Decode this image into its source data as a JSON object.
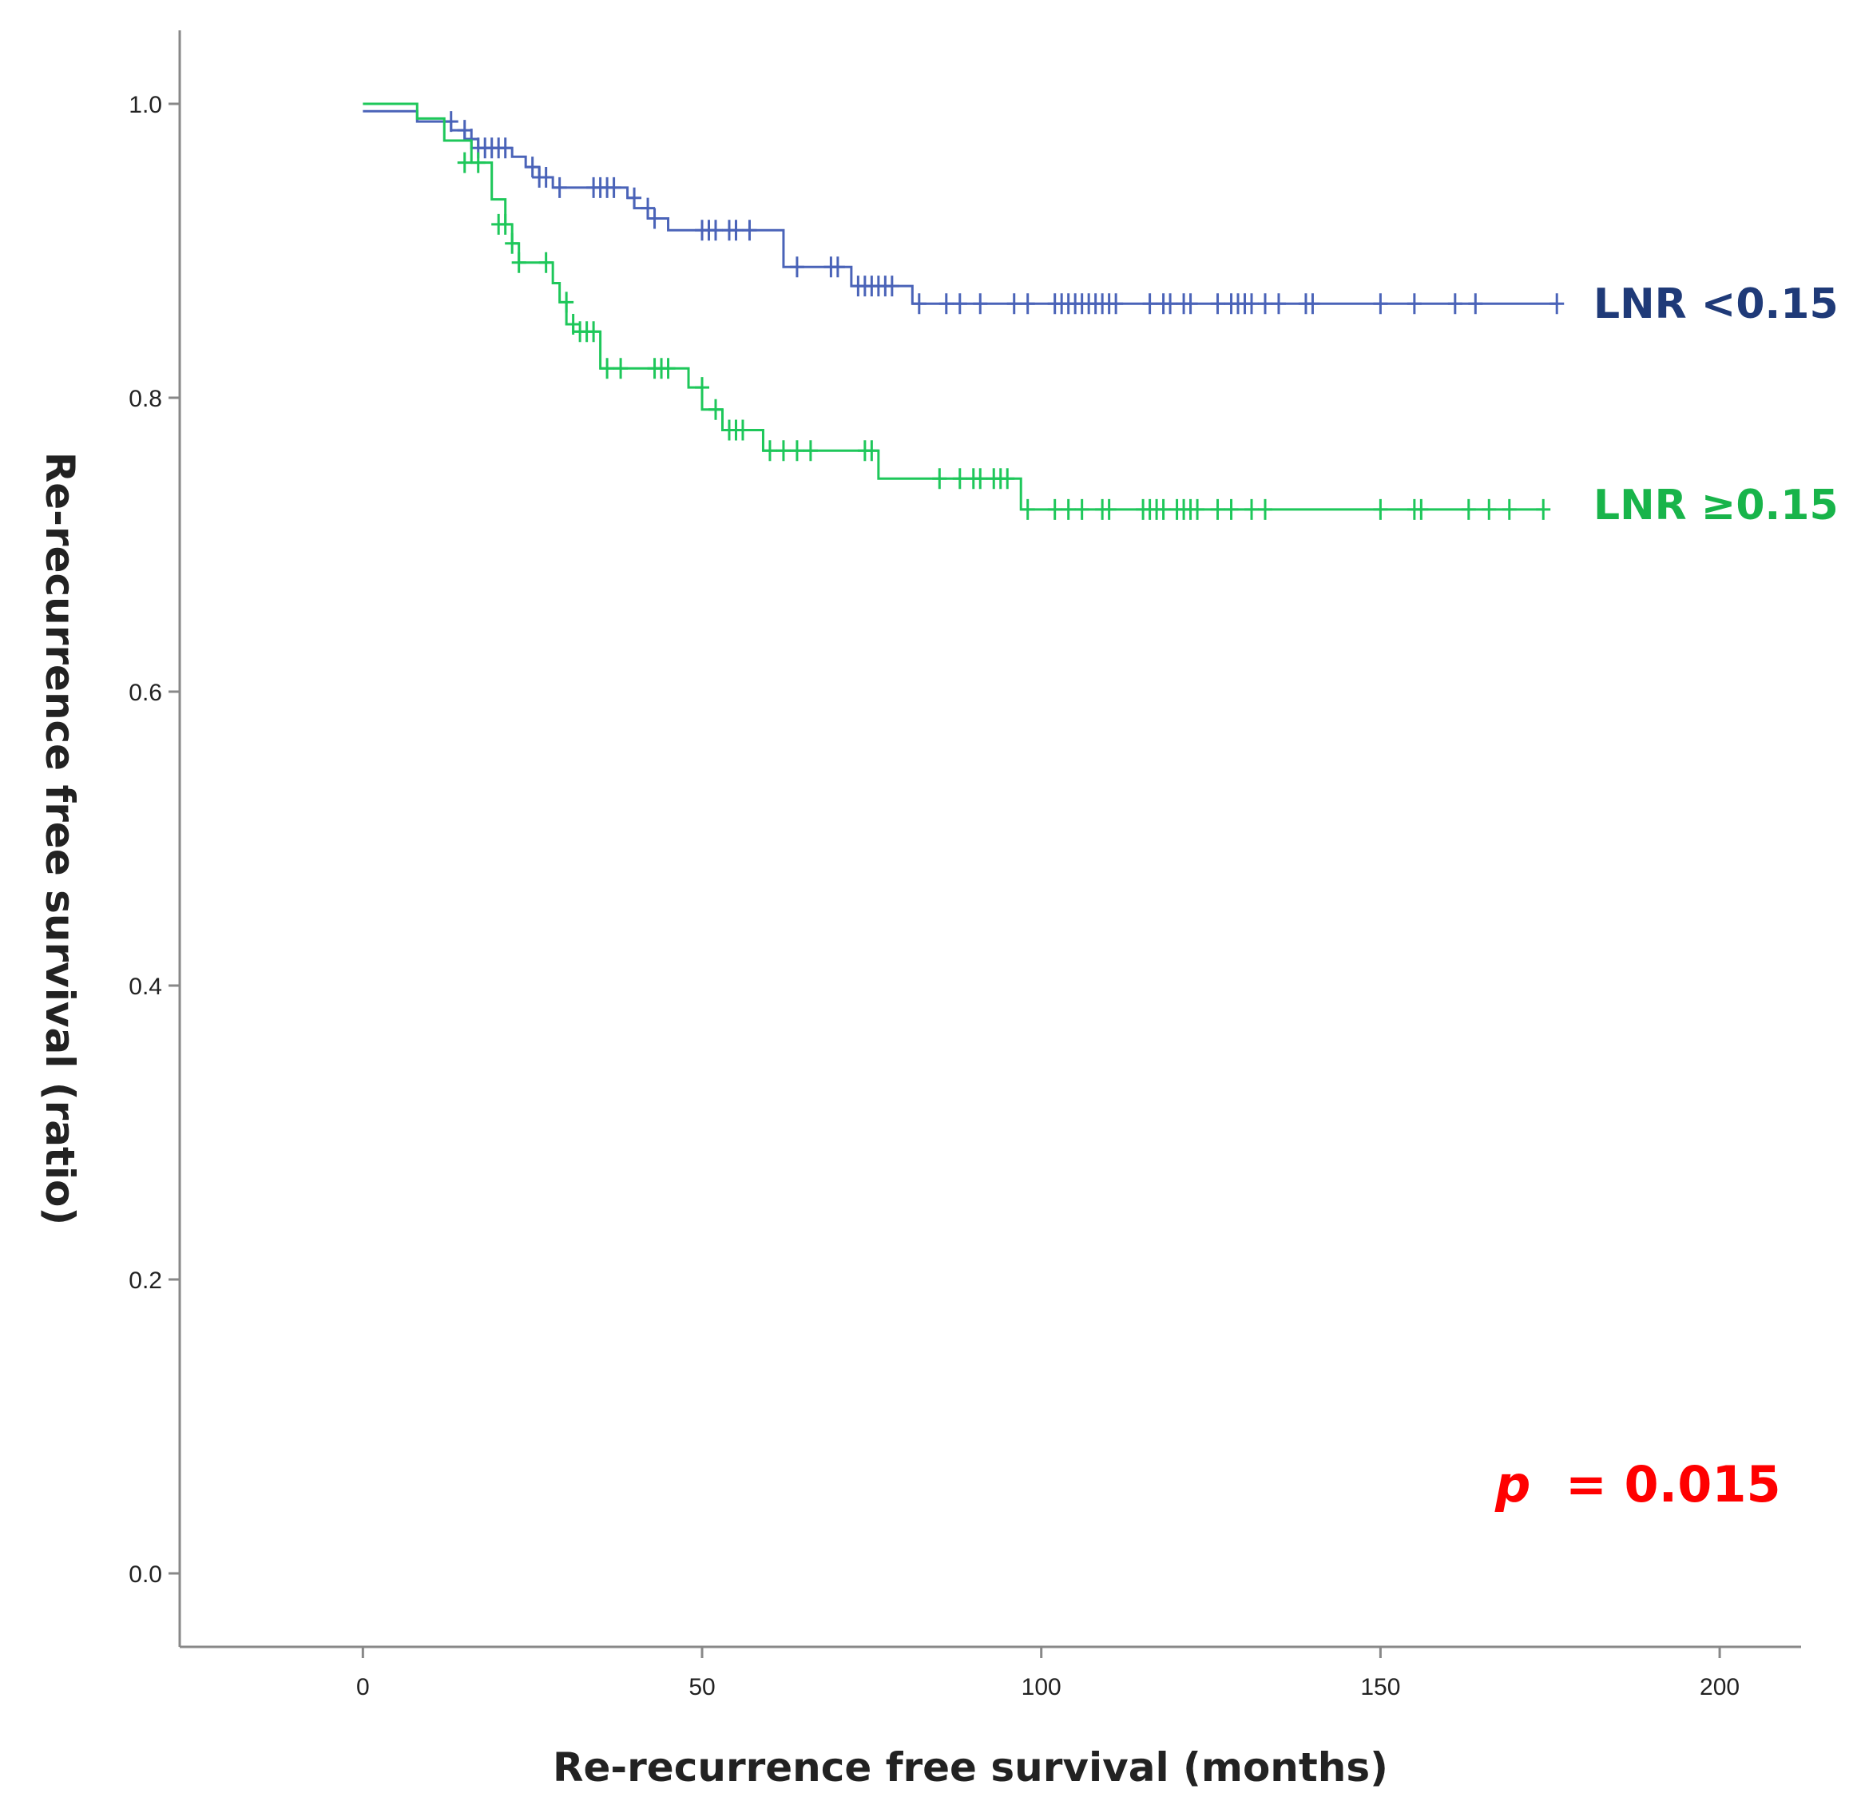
{
  "chart_data": {
    "type": "line",
    "subtype": "kaplan-meier",
    "xlabel": "Re-recurrence free survival (months)",
    "ylabel": "Re-recurrence free survival (ratio)",
    "xlim": [
      -27,
      212
    ],
    "ylim": [
      -0.05,
      1.05
    ],
    "xticks": [
      0,
      50,
      100,
      150,
      200
    ],
    "yticks": [
      "0.0",
      "0.2",
      "0.4",
      "0.6",
      "0.8",
      "1.0"
    ],
    "p_value": {
      "prefix": "p",
      "text": "= 0.015",
      "color": "#ff0000"
    },
    "series": [
      {
        "name": "LNR <0.15",
        "color": "#4a63b8",
        "label_color": "#1f3a78",
        "steps": [
          [
            0,
            0.995
          ],
          [
            8,
            0.988
          ],
          [
            13,
            0.982
          ],
          [
            15,
            0.976
          ],
          [
            17,
            0.97
          ],
          [
            22,
            0.964
          ],
          [
            24,
            0.957
          ],
          [
            26,
            0.95
          ],
          [
            28,
            0.943
          ],
          [
            35,
            0.943
          ],
          [
            39,
            0.936
          ],
          [
            40,
            0.929
          ],
          [
            42,
            0.922
          ],
          [
            45,
            0.914
          ],
          [
            62,
            0.889
          ],
          [
            72,
            0.876
          ],
          [
            81,
            0.864
          ],
          [
            176,
            0.864
          ]
        ],
        "censored": [
          [
            13,
            0.988
          ],
          [
            15,
            0.982
          ],
          [
            16,
            0.976
          ],
          [
            17,
            0.97
          ],
          [
            18,
            0.97
          ],
          [
            19,
            0.97
          ],
          [
            20,
            0.97
          ],
          [
            21,
            0.97
          ],
          [
            25,
            0.957
          ],
          [
            26,
            0.95
          ],
          [
            27,
            0.95
          ],
          [
            29,
            0.943
          ],
          [
            34,
            0.943
          ],
          [
            35,
            0.943
          ],
          [
            36,
            0.943
          ],
          [
            37,
            0.943
          ],
          [
            40,
            0.936
          ],
          [
            42,
            0.929
          ],
          [
            43,
            0.922
          ],
          [
            50,
            0.914
          ],
          [
            51,
            0.914
          ],
          [
            52,
            0.914
          ],
          [
            54,
            0.914
          ],
          [
            55,
            0.914
          ],
          [
            57,
            0.914
          ],
          [
            64,
            0.889
          ],
          [
            69,
            0.889
          ],
          [
            70,
            0.889
          ],
          [
            73,
            0.876
          ],
          [
            74,
            0.876
          ],
          [
            75,
            0.876
          ],
          [
            76,
            0.876
          ],
          [
            77,
            0.876
          ],
          [
            78,
            0.876
          ],
          [
            82,
            0.864
          ],
          [
            86,
            0.864
          ],
          [
            88,
            0.864
          ],
          [
            91,
            0.864
          ],
          [
            96,
            0.864
          ],
          [
            98,
            0.864
          ],
          [
            102,
            0.864
          ],
          [
            103,
            0.864
          ],
          [
            104,
            0.864
          ],
          [
            105,
            0.864
          ],
          [
            106,
            0.864
          ],
          [
            107,
            0.864
          ],
          [
            108,
            0.864
          ],
          [
            109,
            0.864
          ],
          [
            110,
            0.864
          ],
          [
            111,
            0.864
          ],
          [
            116,
            0.864
          ],
          [
            118,
            0.864
          ],
          [
            119,
            0.864
          ],
          [
            121,
            0.864
          ],
          [
            122,
            0.864
          ],
          [
            126,
            0.864
          ],
          [
            128,
            0.864
          ],
          [
            129,
            0.864
          ],
          [
            130,
            0.864
          ],
          [
            131,
            0.864
          ],
          [
            133,
            0.864
          ],
          [
            135,
            0.864
          ],
          [
            139,
            0.864
          ],
          [
            140,
            0.864
          ],
          [
            150,
            0.864
          ],
          [
            155,
            0.864
          ],
          [
            161,
            0.864
          ],
          [
            164,
            0.864
          ],
          [
            176,
            0.864
          ]
        ]
      },
      {
        "name": "LNR ≥0.15",
        "color": "#1ec75a",
        "label_color": "#18b44a",
        "steps": [
          [
            0,
            1.0
          ],
          [
            8,
            0.99
          ],
          [
            12,
            0.975
          ],
          [
            16,
            0.96
          ],
          [
            19,
            0.935
          ],
          [
            21,
            0.918
          ],
          [
            22,
            0.905
          ],
          [
            23,
            0.892
          ],
          [
            28,
            0.878
          ],
          [
            29,
            0.865
          ],
          [
            30,
            0.85
          ],
          [
            31,
            0.845
          ],
          [
            35,
            0.82
          ],
          [
            48,
            0.807
          ],
          [
            50,
            0.792
          ],
          [
            53,
            0.778
          ],
          [
            59,
            0.764
          ],
          [
            76,
            0.745
          ],
          [
            97,
            0.724
          ],
          [
            174,
            0.724
          ]
        ],
        "censored": [
          [
            15,
            0.96
          ],
          [
            17,
            0.96
          ],
          [
            20,
            0.918
          ],
          [
            21,
            0.918
          ],
          [
            22,
            0.905
          ],
          [
            23,
            0.892
          ],
          [
            27,
            0.892
          ],
          [
            30,
            0.865
          ],
          [
            31,
            0.85
          ],
          [
            32,
            0.845
          ],
          [
            33,
            0.845
          ],
          [
            34,
            0.845
          ],
          [
            36,
            0.82
          ],
          [
            38,
            0.82
          ],
          [
            43,
            0.82
          ],
          [
            44,
            0.82
          ],
          [
            45,
            0.82
          ],
          [
            50,
            0.807
          ],
          [
            52,
            0.792
          ],
          [
            54,
            0.778
          ],
          [
            55,
            0.778
          ],
          [
            56,
            0.778
          ],
          [
            60,
            0.764
          ],
          [
            62,
            0.764
          ],
          [
            64,
            0.764
          ],
          [
            66,
            0.764
          ],
          [
            74,
            0.764
          ],
          [
            75,
            0.764
          ],
          [
            85,
            0.745
          ],
          [
            88,
            0.745
          ],
          [
            90,
            0.745
          ],
          [
            91,
            0.745
          ],
          [
            93,
            0.745
          ],
          [
            94,
            0.745
          ],
          [
            95,
            0.745
          ],
          [
            98,
            0.724
          ],
          [
            102,
            0.724
          ],
          [
            104,
            0.724
          ],
          [
            106,
            0.724
          ],
          [
            109,
            0.724
          ],
          [
            110,
            0.724
          ],
          [
            115,
            0.724
          ],
          [
            116,
            0.724
          ],
          [
            117,
            0.724
          ],
          [
            118,
            0.724
          ],
          [
            120,
            0.724
          ],
          [
            121,
            0.724
          ],
          [
            122,
            0.724
          ],
          [
            123,
            0.724
          ],
          [
            126,
            0.724
          ],
          [
            128,
            0.724
          ],
          [
            131,
            0.724
          ],
          [
            133,
            0.724
          ],
          [
            150,
            0.724
          ],
          [
            155,
            0.724
          ],
          [
            156,
            0.724
          ],
          [
            163,
            0.724
          ],
          [
            166,
            0.724
          ],
          [
            169,
            0.724
          ],
          [
            174,
            0.724
          ]
        ]
      }
    ]
  }
}
